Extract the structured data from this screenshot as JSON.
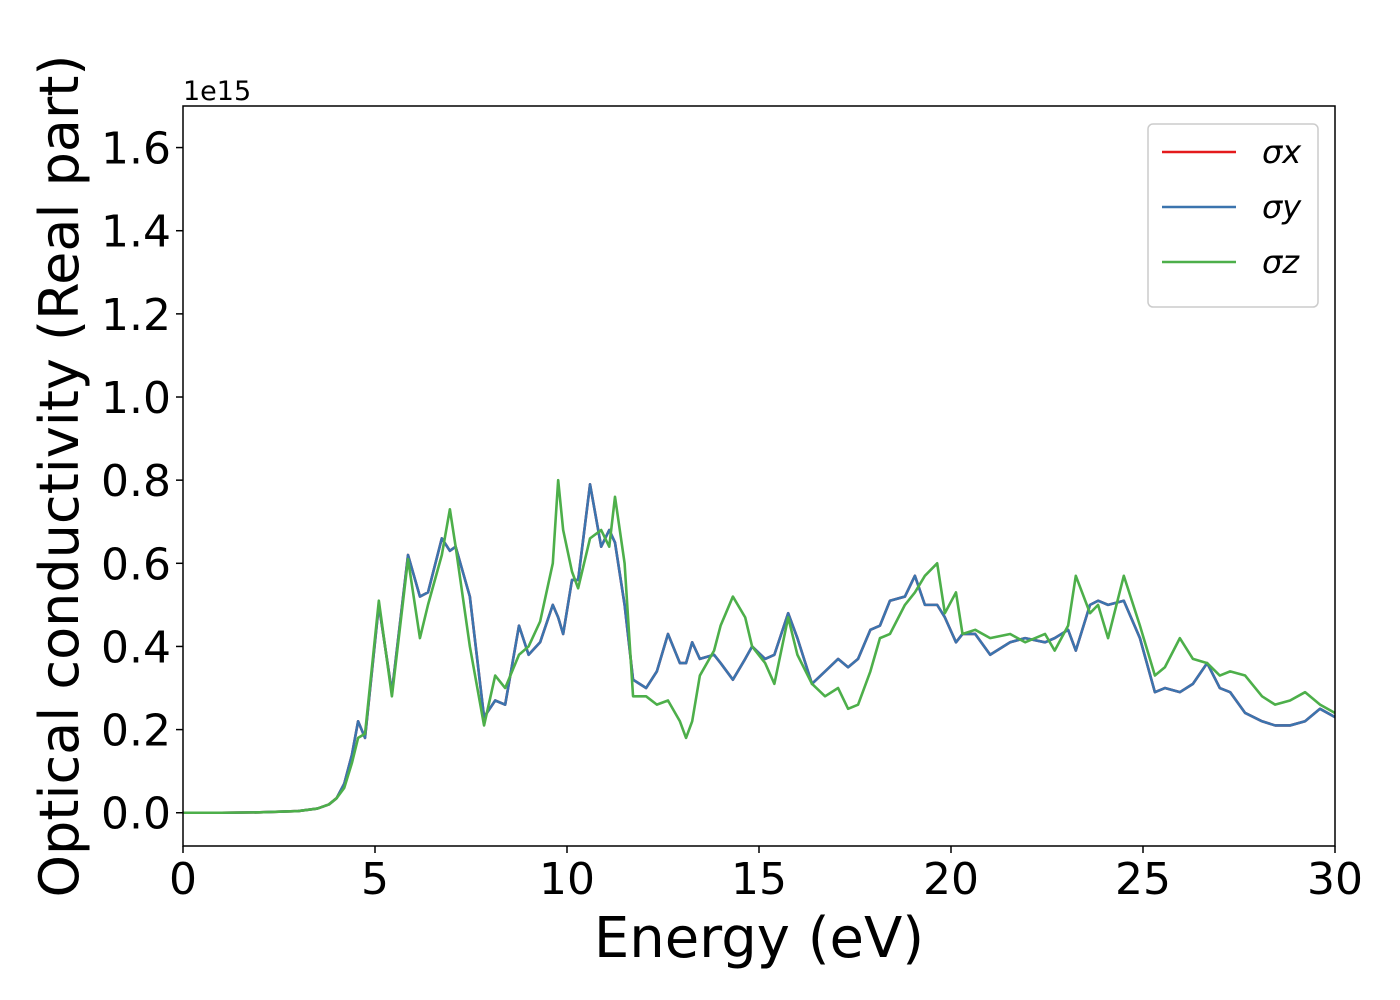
{
  "chart_data": {
    "type": "line",
    "x_label": "Energy (eV)",
    "y_label": "Optical conductivity (Real part)",
    "y_offset_label": "1e15",
    "xlim": [
      0,
      30
    ],
    "ylim": [
      -0.08,
      1.7
    ],
    "xticks": [
      0,
      5,
      10,
      15,
      20,
      25,
      30
    ],
    "yticks": [
      {
        "value": 0,
        "label": "0.0"
      },
      0.2,
      0.4,
      0.6,
      0.8,
      {
        "value": 1,
        "label": "1.0"
      },
      1.2,
      1.4,
      1.6
    ],
    "legend": "upper right",
    "grid": false,
    "x": [
      0,
      1,
      2,
      3,
      3.5,
      3.8,
      4.0,
      4.2,
      4.4,
      4.56,
      4.74,
      5.1,
      5.44,
      5.86,
      6.17,
      6.38,
      6.74,
      6.95,
      7.1,
      7.47,
      7.84,
      8.13,
      8.39,
      8.75,
      9.0,
      9.3,
      9.63,
      9.77,
      9.9,
      10.13,
      10.29,
      10.6,
      10.89,
      11.1,
      11.25,
      11.5,
      11.72,
      12.06,
      12.34,
      12.63,
      12.94,
      13.1,
      13.26,
      13.46,
      13.83,
      14.0,
      14.32,
      14.64,
      14.82,
      15.16,
      15.4,
      15.76,
      16.0,
      16.38,
      16.72,
      17.06,
      17.32,
      17.58,
      17.9,
      18.15,
      18.41,
      18.8,
      19.06,
      19.32,
      19.64,
      19.84,
      20.13,
      20.3,
      20.63,
      21.02,
      21.54,
      21.93,
      22.45,
      22.7,
      23.05,
      23.25,
      23.62,
      23.83,
      24.09,
      24.5,
      24.92,
      25.31,
      25.57,
      25.96,
      26.3,
      26.67,
      27.0,
      27.27,
      27.66,
      28.1,
      28.44,
      28.83,
      29.22,
      29.61,
      30
    ],
    "series": [
      {
        "name": "σx",
        "color": "#e41a1c",
        "values": [
          0,
          0,
          0.001,
          0.004,
          0.01,
          0.02,
          0.035,
          0.07,
          0.14,
          0.22,
          0.18,
          0.5,
          0.29,
          0.62,
          0.52,
          0.53,
          0.66,
          0.63,
          0.64,
          0.52,
          0.23,
          0.27,
          0.26,
          0.45,
          0.38,
          0.41,
          0.5,
          0.47,
          0.43,
          0.56,
          0.56,
          0.79,
          0.64,
          0.68,
          0.65,
          0.5,
          0.32,
          0.3,
          0.34,
          0.43,
          0.36,
          0.36,
          0.41,
          0.37,
          0.38,
          0.36,
          0.32,
          0.37,
          0.4,
          0.37,
          0.38,
          0.48,
          0.42,
          0.31,
          0.34,
          0.37,
          0.35,
          0.37,
          0.44,
          0.45,
          0.51,
          0.52,
          0.57,
          0.5,
          0.5,
          0.47,
          0.41,
          0.43,
          0.43,
          0.38,
          0.41,
          0.42,
          0.41,
          0.42,
          0.44,
          0.39,
          0.5,
          0.51,
          0.5,
          0.51,
          0.42,
          0.29,
          0.3,
          0.29,
          0.31,
          0.36,
          0.3,
          0.29,
          0.24,
          0.22,
          0.21,
          0.21,
          0.22,
          0.25,
          0.23
        ]
      },
      {
        "name": "σy",
        "color": "#3b74ae",
        "values": [
          0,
          0,
          0.001,
          0.004,
          0.01,
          0.02,
          0.035,
          0.07,
          0.14,
          0.22,
          0.18,
          0.5,
          0.29,
          0.62,
          0.52,
          0.53,
          0.66,
          0.63,
          0.64,
          0.52,
          0.23,
          0.27,
          0.26,
          0.45,
          0.38,
          0.41,
          0.5,
          0.47,
          0.43,
          0.56,
          0.56,
          0.79,
          0.64,
          0.68,
          0.65,
          0.5,
          0.32,
          0.3,
          0.34,
          0.43,
          0.36,
          0.36,
          0.41,
          0.37,
          0.38,
          0.36,
          0.32,
          0.37,
          0.4,
          0.37,
          0.38,
          0.48,
          0.42,
          0.31,
          0.34,
          0.37,
          0.35,
          0.37,
          0.44,
          0.45,
          0.51,
          0.52,
          0.57,
          0.5,
          0.5,
          0.47,
          0.41,
          0.43,
          0.43,
          0.38,
          0.41,
          0.42,
          0.41,
          0.42,
          0.44,
          0.39,
          0.5,
          0.51,
          0.5,
          0.51,
          0.42,
          0.29,
          0.3,
          0.29,
          0.31,
          0.36,
          0.3,
          0.29,
          0.24,
          0.22,
          0.21,
          0.21,
          0.22,
          0.25,
          0.23
        ]
      },
      {
        "name": "σz",
        "color": "#4daf4a",
        "values": [
          0,
          0,
          0.001,
          0.004,
          0.01,
          0.02,
          0.035,
          0.06,
          0.12,
          0.18,
          0.19,
          0.51,
          0.28,
          0.61,
          0.42,
          0.5,
          0.62,
          0.73,
          0.64,
          0.4,
          0.21,
          0.33,
          0.3,
          0.38,
          0.4,
          0.46,
          0.6,
          0.8,
          0.68,
          0.58,
          0.54,
          0.66,
          0.68,
          0.64,
          0.76,
          0.6,
          0.28,
          0.28,
          0.26,
          0.27,
          0.22,
          0.18,
          0.22,
          0.33,
          0.39,
          0.45,
          0.52,
          0.47,
          0.4,
          0.36,
          0.31,
          0.47,
          0.38,
          0.31,
          0.28,
          0.3,
          0.25,
          0.26,
          0.34,
          0.42,
          0.43,
          0.5,
          0.53,
          0.57,
          0.6,
          0.48,
          0.53,
          0.43,
          0.44,
          0.42,
          0.43,
          0.41,
          0.43,
          0.39,
          0.45,
          0.57,
          0.48,
          0.5,
          0.42,
          0.57,
          0.45,
          0.33,
          0.35,
          0.42,
          0.37,
          0.36,
          0.33,
          0.34,
          0.33,
          0.28,
          0.26,
          0.27,
          0.29,
          0.26,
          0.24
        ]
      }
    ]
  }
}
